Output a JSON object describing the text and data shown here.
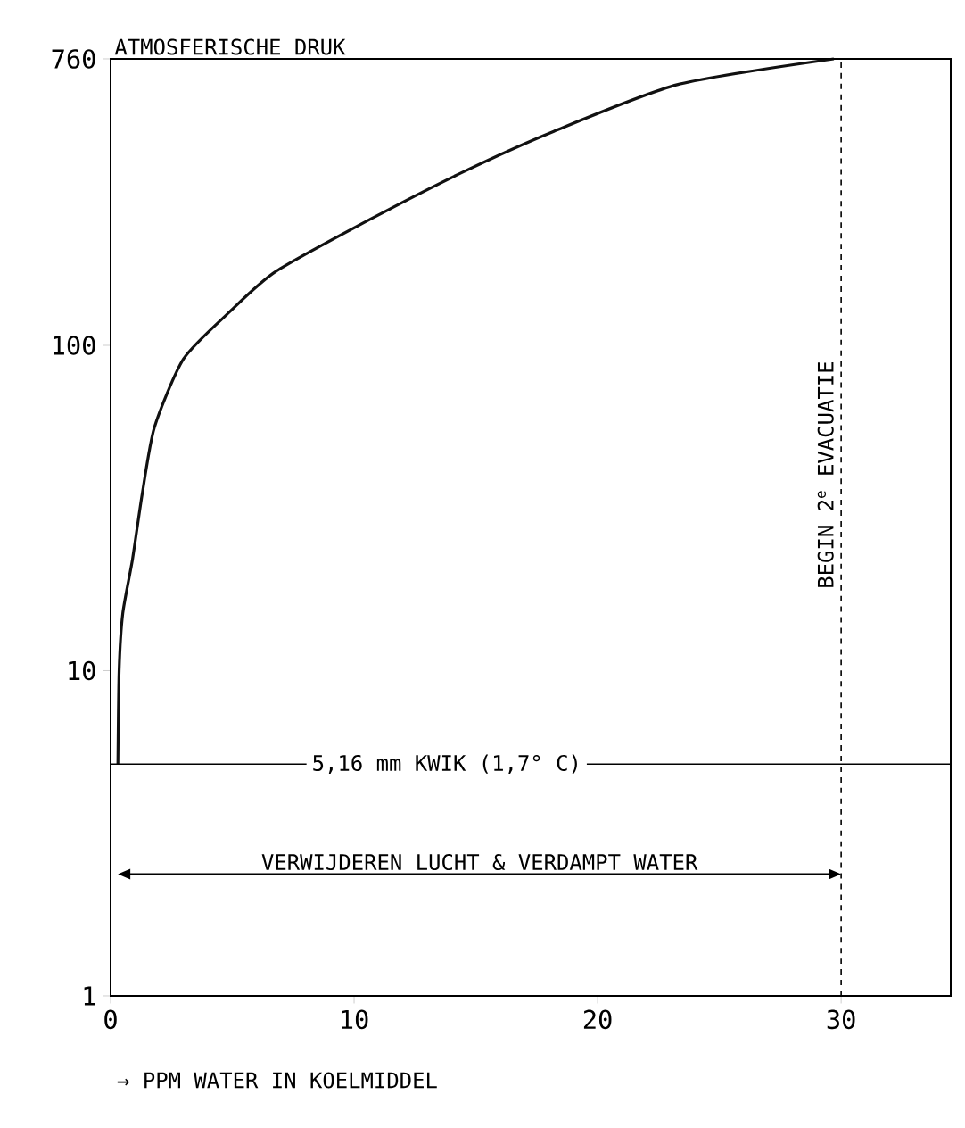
{
  "chart_data": {
    "type": "line",
    "xlabel": "→ PPM WATER IN KOELMIDDEL",
    "x": [
      0.3,
      0.35,
      0.5,
      0.9,
      1.3,
      1.8,
      3,
      4.9,
      6.8,
      10.7,
      14.5,
      18.2,
      23.3,
      29.7
    ],
    "series": [
      {
        "color": "#111111",
        "values": [
          5.16,
          10,
          15,
          22,
          35,
          56,
          91,
          127,
          169,
          245,
          342,
          455,
          634,
          760
        ]
      }
    ],
    "log": "y",
    "xlim": [
      0,
      34.5
    ],
    "ylim": [
      1,
      760
    ],
    "xticks": [
      0,
      10,
      20,
      30
    ],
    "yticks": [
      1,
      10,
      100,
      760
    ],
    "grid": false,
    "marker": "none",
    "line_style": "solid",
    "ref_lines": [
      {
        "axis": "y",
        "value": 760,
        "label": "ATMOSFERISCHE DRUK"
      },
      {
        "axis": "y",
        "value": 5.16,
        "label": "5,16 mm KWIK (1,7° C)"
      },
      {
        "axis": "x",
        "value": 30,
        "label": "BEGIN 2$^{e}$ EVACUATIE",
        "line_style": "dashed"
      }
    ],
    "annotations": [
      "VERWIJDEREN LUCHT & VERDAMPT WATER"
    ]
  }
}
